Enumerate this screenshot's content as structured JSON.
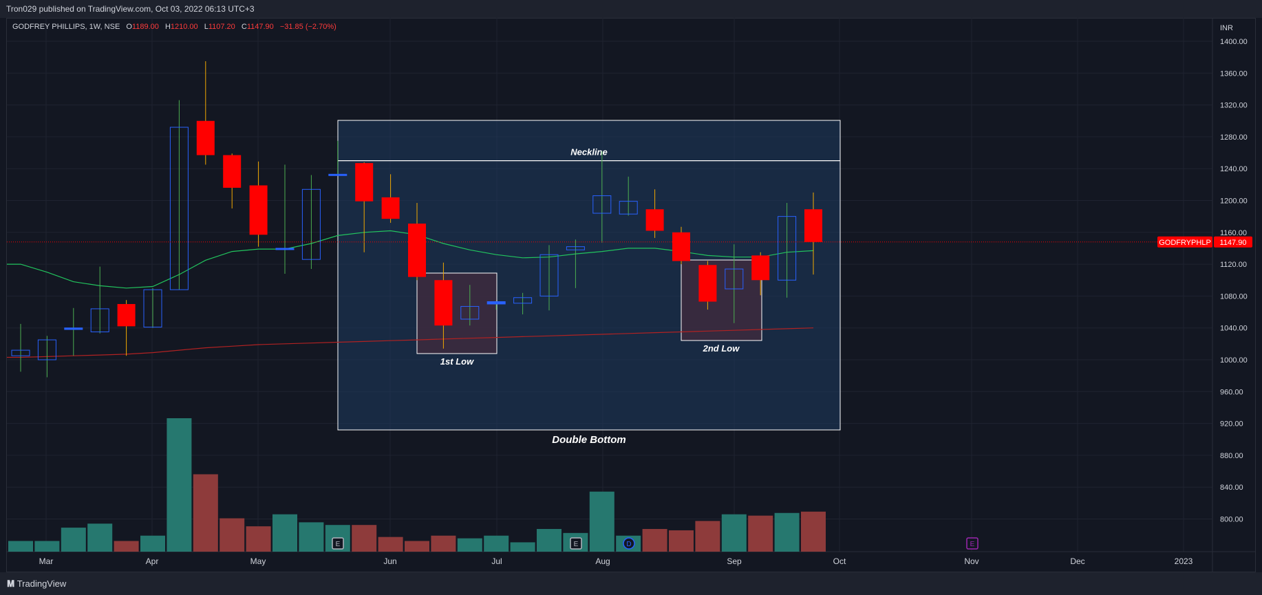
{
  "header": {
    "publisher": "Tron029 published on TradingView.com, Oct 03, 2022 06:13 UTC+3"
  },
  "footer": {
    "brand": "TradingView"
  },
  "legend": {
    "symbol": "GODFREY PHILLIPS, 1W, NSE",
    "o_label": "O",
    "o_value": "1189.00",
    "h_label": "H",
    "h_value": "1210.00",
    "l_label": "L",
    "l_value": "1107.20",
    "c_label": "C",
    "c_value": "1147.90",
    "change": "−31.85 (−2.70%)"
  },
  "colors": {
    "up": "#2962ff",
    "down": "#ff0000",
    "wick_up": "#4caf50",
    "wick_down": "#f2a900",
    "ema_fast": "#22c55e",
    "ema_slow": "#b22222",
    "vol_up": "#26786f",
    "vol_down": "#8e3b3b",
    "zone_fill": "#1e3a5f",
    "low_fill": "#3b2a3e",
    "price_tag": "#ff0000"
  },
  "chart_data": {
    "type": "candlestick",
    "symbol": "GODFREY PHILLIPS",
    "interval": "1W",
    "exchange": "NSE",
    "currency": "INR",
    "y_ticks": [
      "1400.00",
      "1360.00",
      "1320.00",
      "1280.00",
      "1240.00",
      "1200.00",
      "1160.00",
      "1120.00",
      "1080.00",
      "1040.00",
      "1000.00",
      "960.00",
      "920.00",
      "880.00",
      "840.00",
      "800.00"
    ],
    "ylim": [
      760,
      1420
    ],
    "x_ticks": [
      "Mar",
      "Apr",
      "May",
      "Jun",
      "Jul",
      "Aug",
      "Sep",
      "Oct",
      "Nov",
      "Dec",
      "2023"
    ],
    "last_price_label": "GODFRYPHLP",
    "last_price": "1147.90",
    "candles": [
      {
        "o": 1005,
        "h": 1045,
        "l": 985,
        "c": 1012
      },
      {
        "o": 1000,
        "h": 1030,
        "l": 978,
        "c": 1025
      },
      {
        "o": 1038,
        "h": 1065,
        "l": 1005,
        "c": 1040
      },
      {
        "o": 1035,
        "h": 1117,
        "l": 1033,
        "c": 1064
      },
      {
        "o": 1070,
        "h": 1075,
        "l": 1005,
        "c": 1042
      },
      {
        "o": 1041,
        "h": 1090,
        "l": 1040,
        "c": 1088
      },
      {
        "o": 1088,
        "h": 1326,
        "l": 1088,
        "c": 1292
      },
      {
        "o": 1300,
        "h": 1375,
        "l": 1245,
        "c": 1257
      },
      {
        "o": 1257,
        "h": 1259,
        "l": 1190,
        "c": 1216
      },
      {
        "o": 1219,
        "h": 1249,
        "l": 1142,
        "c": 1157
      },
      {
        "o": 1140,
        "h": 1245,
        "l": 1108,
        "c": 1140
      },
      {
        "o": 1126,
        "h": 1232,
        "l": 1114,
        "c": 1214
      },
      {
        "o": 1232,
        "h": 1275,
        "l": 1232,
        "c": 1233
      },
      {
        "o": 1247,
        "h": 1248,
        "l": 1135,
        "c": 1199
      },
      {
        "o": 1204,
        "h": 1233,
        "l": 1172,
        "c": 1177
      },
      {
        "o": 1171,
        "h": 1197,
        "l": 1100,
        "c": 1104
      },
      {
        "o": 1100,
        "h": 1122,
        "l": 1014,
        "c": 1043
      },
      {
        "o": 1051,
        "h": 1094,
        "l": 1043,
        "c": 1067
      },
      {
        "o": 1070,
        "h": 1074,
        "l": 1063,
        "c": 1073
      },
      {
        "o": 1071,
        "h": 1084,
        "l": 1057,
        "c": 1078
      },
      {
        "o": 1080,
        "h": 1144,
        "l": 1062,
        "c": 1132
      },
      {
        "o": 1138,
        "h": 1151,
        "l": 1090,
        "c": 1142
      },
      {
        "o": 1184,
        "h": 1262,
        "l": 1147,
        "c": 1206
      },
      {
        "o": 1183,
        "h": 1230,
        "l": 1181,
        "c": 1199
      },
      {
        "o": 1189,
        "h": 1214,
        "l": 1153,
        "c": 1162
      },
      {
        "o": 1160,
        "h": 1167,
        "l": 1120,
        "c": 1124
      },
      {
        "o": 1119,
        "h": 1124,
        "l": 1063,
        "c": 1073
      },
      {
        "o": 1089,
        "h": 1145,
        "l": 1046,
        "c": 1114
      },
      {
        "o": 1131,
        "h": 1135,
        "l": 1081,
        "c": 1100
      },
      {
        "o": 1100,
        "h": 1197,
        "l": 1078,
        "c": 1180
      },
      {
        "o": 1189,
        "h": 1210,
        "l": 1107,
        "c": 1147.9
      }
    ],
    "volume_relative": [
      0.08,
      0.08,
      0.18,
      0.21,
      0.08,
      0.12,
      1.0,
      0.58,
      0.25,
      0.19,
      0.28,
      0.22,
      0.2,
      0.2,
      0.11,
      0.08,
      0.12,
      0.1,
      0.12,
      0.07,
      0.17,
      0.14,
      0.45,
      0.12,
      0.17,
      0.16,
      0.23,
      0.28,
      0.27,
      0.29,
      0.3
    ],
    "ema_fast": [
      1120,
      1110,
      1098,
      1093,
      1090,
      1092,
      1107,
      1125,
      1136,
      1139,
      1139,
      1146,
      1156,
      1160,
      1162,
      1157,
      1146,
      1138,
      1132,
      1128,
      1129,
      1133,
      1136,
      1140,
      1140,
      1136,
      1131,
      1129,
      1129,
      1135,
      1137
    ],
    "ema_slow": [
      1003,
      1004,
      1005,
      1006,
      1007,
      1009,
      1012,
      1015,
      1017,
      1019,
      1020,
      1021,
      1022,
      1023,
      1024,
      1025,
      1026,
      1027,
      1028,
      1029,
      1030,
      1031,
      1032,
      1033,
      1034,
      1035,
      1036,
      1037,
      1038,
      1039,
      1040
    ],
    "event_markers": [
      {
        "label": "E",
        "color": "#b2b5be"
      },
      {
        "label": "E",
        "color": "#b2b5be"
      },
      {
        "label": "D",
        "color": "#2962ff"
      },
      {
        "label": "E",
        "color": "#9c27b0"
      }
    ],
    "annotations": {
      "pattern_box_label": "Double Bottom",
      "neckline_label": "Neckline",
      "neckline_price": 1250,
      "low1_label": "1st Low",
      "low2_label": "2nd Low"
    }
  }
}
